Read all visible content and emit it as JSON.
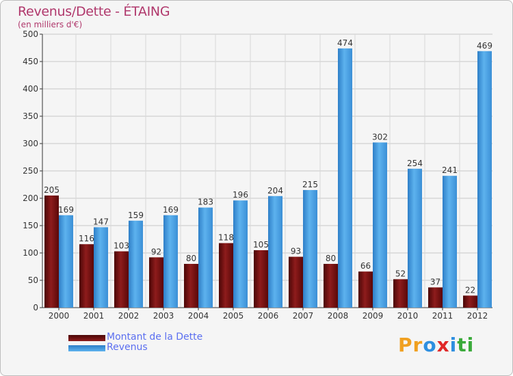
{
  "chart_data": {
    "type": "bar",
    "title": "Revenus/Dette - ÉTAING",
    "subtitle": "(en milliers d'€)",
    "categories": [
      "2000",
      "2001",
      "2002",
      "2003",
      "2004",
      "2005",
      "2006",
      "2007",
      "2008",
      "2009",
      "2010",
      "2011",
      "2012"
    ],
    "series": [
      {
        "name": "Montant de la Dette",
        "color": "#7a0e0e",
        "values": [
          205,
          116,
          103,
          92,
          80,
          118,
          105,
          93,
          80,
          66,
          52,
          37,
          22
        ]
      },
      {
        "name": "Revenus",
        "color": "#4aa3e6",
        "values": [
          169,
          147,
          159,
          169,
          183,
          196,
          204,
          215,
          474,
          302,
          254,
          241,
          469
        ]
      }
    ],
    "ylim": [
      0,
      500
    ],
    "yticks": [
      0,
      50,
      100,
      150,
      200,
      250,
      300,
      350,
      400,
      450,
      500
    ],
    "grid": true,
    "xlabel": "",
    "ylabel": ""
  },
  "legend": {
    "items": [
      "Montant de la Dette",
      "Revenus"
    ]
  },
  "logo": {
    "text": "Proxiti",
    "letters": [
      "P",
      "r",
      "o",
      "x",
      "i",
      "t",
      "i"
    ]
  }
}
